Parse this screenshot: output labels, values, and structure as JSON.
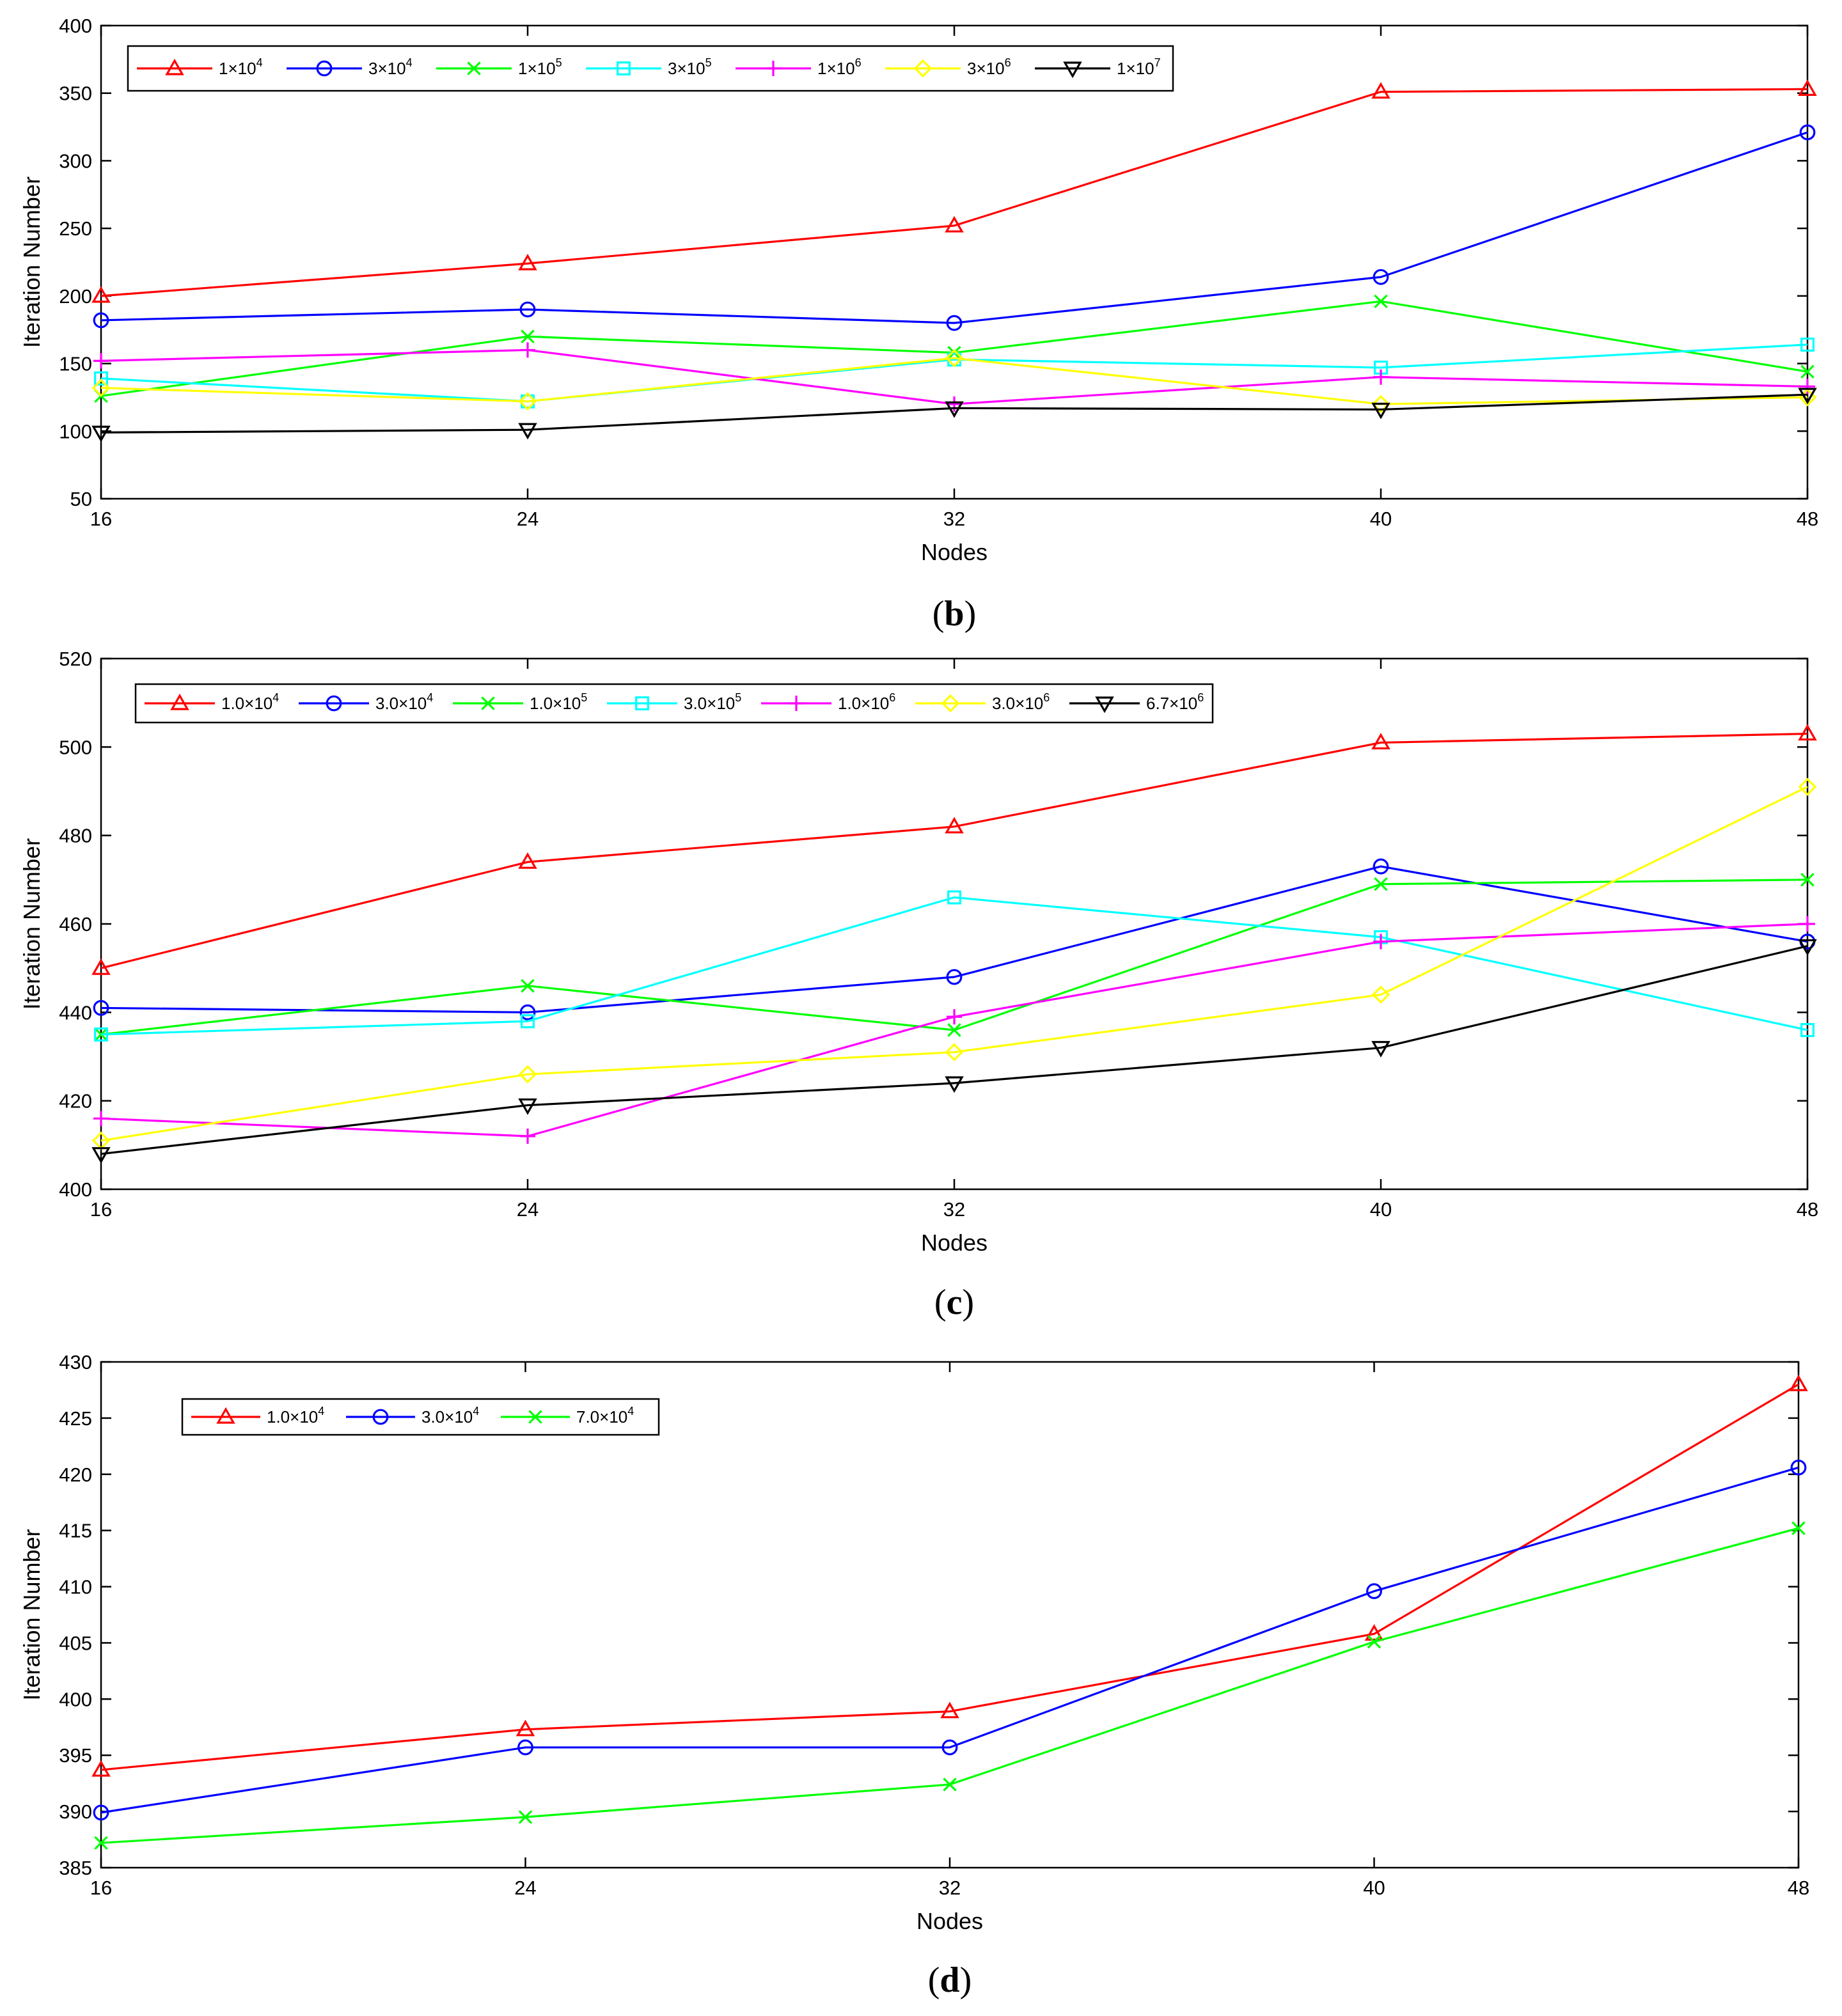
{
  "chart_data": [
    {
      "type": "line",
      "panel": "(b)",
      "caption_open": "(",
      "caption_letter": "b",
      "caption_close": ")",
      "xlabel": "Nodes",
      "ylabel": "Iteration Number",
      "x": [
        16,
        24,
        32,
        40,
        48
      ],
      "xlim": [
        16,
        48
      ],
      "ylim": [
        50,
        400
      ],
      "yticks": [
        50,
        100,
        150,
        200,
        250,
        300,
        350,
        400
      ],
      "legend_location": "top-left",
      "series": [
        {
          "name": "1×10",
          "exp": "4",
          "color": "#ff0000",
          "marker": "triangle-up",
          "values": [
            200,
            224,
            252,
            351,
            353
          ]
        },
        {
          "name": "3×10",
          "exp": "4",
          "color": "#0000ff",
          "marker": "circle",
          "values": [
            182,
            190,
            180,
            214,
            321
          ]
        },
        {
          "name": "1×10",
          "exp": "5",
          "color": "#00ff00",
          "marker": "x",
          "values": [
            126,
            170,
            158,
            196,
            144
          ]
        },
        {
          "name": "3×10",
          "exp": "5",
          "color": "#00ffff",
          "marker": "square",
          "values": [
            139,
            122,
            153,
            147,
            164
          ]
        },
        {
          "name": "1×10",
          "exp": "6",
          "color": "#ff00ff",
          "marker": "plus",
          "values": [
            152,
            160,
            120,
            140,
            133
          ]
        },
        {
          "name": "3×10",
          "exp": "6",
          "color": "#ffff00",
          "marker": "diamond",
          "values": [
            132,
            122,
            154,
            120,
            125
          ]
        },
        {
          "name": "1×10",
          "exp": "7",
          "color": "#000000",
          "marker": "triangle-down",
          "values": [
            99,
            101,
            117,
            116,
            127
          ]
        }
      ]
    },
    {
      "type": "line",
      "panel": "(c)",
      "caption_open": "(",
      "caption_letter": "c",
      "caption_close": ")",
      "xlabel": "Nodes",
      "ylabel": "Iteration Number",
      "x": [
        16,
        24,
        32,
        40,
        48
      ],
      "xlim": [
        16,
        48
      ],
      "ylim": [
        400,
        520
      ],
      "yticks": [
        400,
        420,
        440,
        460,
        480,
        500,
        520
      ],
      "legend_location": "top-left",
      "series": [
        {
          "name": "1.0×10",
          "exp": "4",
          "color": "#ff0000",
          "marker": "triangle-up",
          "values": [
            450,
            474,
            482,
            501,
            503
          ]
        },
        {
          "name": "3.0×10",
          "exp": "4",
          "color": "#0000ff",
          "marker": "circle",
          "values": [
            441,
            440,
            448,
            473,
            456
          ]
        },
        {
          "name": "1.0×10",
          "exp": "5",
          "color": "#00ff00",
          "marker": "x",
          "values": [
            435,
            446,
            436,
            469,
            470
          ]
        },
        {
          "name": "3.0×10",
          "exp": "5",
          "color": "#00ffff",
          "marker": "square",
          "values": [
            435,
            438,
            466,
            457,
            436
          ]
        },
        {
          "name": "1.0×10",
          "exp": "6",
          "color": "#ff00ff",
          "marker": "plus",
          "values": [
            416,
            412,
            439,
            456,
            460
          ]
        },
        {
          "name": "3.0×10",
          "exp": "6",
          "color": "#ffff00",
          "marker": "diamond",
          "values": [
            411,
            426,
            431,
            444,
            491
          ]
        },
        {
          "name": "6.7×10",
          "exp": "6",
          "color": "#000000",
          "marker": "triangle-down",
          "values": [
            408,
            419,
            424,
            432,
            455
          ]
        }
      ]
    },
    {
      "type": "line",
      "panel": "(d)",
      "caption_open": "(",
      "caption_letter": "d",
      "caption_close": ")",
      "xlabel": "Nodes",
      "ylabel": "Iteration Number",
      "x": [
        16,
        24,
        32,
        40,
        48
      ],
      "xlim": [
        16,
        48
      ],
      "ylim": [
        385,
        430
      ],
      "yticks": [
        385,
        390,
        395,
        400,
        405,
        410,
        415,
        420,
        425,
        430
      ],
      "legend_location": "top-left",
      "series": [
        {
          "name": "1.0×10",
          "exp": "4",
          "color": "#ff0000",
          "marker": "triangle-up",
          "values": [
            393.7,
            397.3,
            398.9,
            405.8,
            428.0
          ]
        },
        {
          "name": "3.0×10",
          "exp": "4",
          "color": "#0000ff",
          "marker": "circle",
          "values": [
            389.9,
            395.7,
            395.7,
            409.6,
            420.6
          ]
        },
        {
          "name": "7.0×10",
          "exp": "4",
          "color": "#00ff00",
          "marker": "x",
          "values": [
            387.2,
            389.5,
            392.4,
            405.1,
            415.2
          ]
        }
      ]
    }
  ]
}
